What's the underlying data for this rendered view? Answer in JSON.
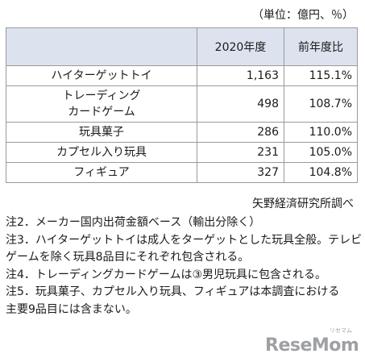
{
  "unit_note": "（単位：億円、％）",
  "table": {
    "headers": [
      "",
      "2020年度",
      "前年度比"
    ],
    "rows": [
      {
        "category": "ハイターゲットトイ",
        "value": "1,163",
        "yoy": "115.1%"
      },
      {
        "category": "トレーディング\nカードゲーム",
        "value": "498",
        "yoy": "108.7%"
      },
      {
        "category": "玩具菓子",
        "value": "286",
        "yoy": "110.0%"
      },
      {
        "category": "カプセル入り玩具",
        "value": "231",
        "yoy": "105.0%"
      },
      {
        "category": "フィギュア",
        "value": "327",
        "yoy": "104.8%"
      }
    ]
  },
  "source": "矢野経済研究所調べ",
  "notes": [
    "注2．メーカー国内出荷金額ベース（輸出分除く）",
    "注3．ハイターゲットトイは成人をターゲットとした玩具全般。テレビ",
    "ゲームを除く玩具8品目にそれぞれ包含される。",
    "注4．トレーディングカードゲームは③男児玩具に包含される。",
    "注5．玩具菓子、カプセル入り玩具、フィギュアは本調査における",
    "主要9品目には含まない。"
  ],
  "logo": {
    "text": "ReseMom",
    "ruby": "リセマム",
    "color": "#9ea0a3"
  },
  "colors": {
    "header_bg": "#dce3ef",
    "border": "#9a9a9a"
  }
}
